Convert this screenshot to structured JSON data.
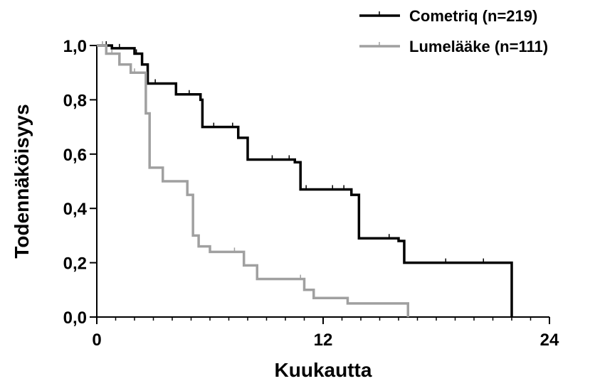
{
  "chart_data": {
    "type": "line",
    "xlabel": "Kuukautta",
    "ylabel": "Todennäköisyys",
    "xlim": [
      0,
      24
    ],
    "ylim": [
      0,
      1.0
    ],
    "x_ticks": [
      "0",
      "12",
      "24"
    ],
    "y_ticks": [
      "0,0",
      "0,2",
      "0,4",
      "0,6",
      "0,8",
      "1,0"
    ],
    "y_tick_values": [
      0,
      0.2,
      0.4,
      0.6,
      0.8,
      1.0
    ],
    "x_tick_values": [
      0,
      12,
      24
    ],
    "grid": false,
    "legend_position": "top-right",
    "step": true,
    "series": [
      {
        "name": "Cometriq (n=219)",
        "color": "#000000",
        "points": [
          [
            0,
            1.0
          ],
          [
            0.8,
            0.99
          ],
          [
            2.0,
            0.97
          ],
          [
            2.4,
            0.93
          ],
          [
            2.7,
            0.86
          ],
          [
            4.2,
            0.82
          ],
          [
            5.5,
            0.8
          ],
          [
            5.6,
            0.7
          ],
          [
            7.5,
            0.66
          ],
          [
            8.0,
            0.58
          ],
          [
            10.5,
            0.57
          ],
          [
            10.8,
            0.47
          ],
          [
            13.5,
            0.45
          ],
          [
            13.9,
            0.29
          ],
          [
            16.0,
            0.28
          ],
          [
            16.3,
            0.2
          ],
          [
            22.0,
            0.2
          ],
          [
            22.0,
            0.0
          ]
        ],
        "censor_x": [
          0.5,
          1.2,
          2.1,
          3.1,
          4.2,
          4.9,
          6.2,
          7.2,
          9.3,
          10.2,
          11.1,
          12.5,
          13.1,
          15.5,
          18.5,
          20.5
        ]
      },
      {
        "name": "Lumelääke (n=111)",
        "color": "#a0a0a0",
        "points": [
          [
            0,
            1.0
          ],
          [
            0.5,
            0.97
          ],
          [
            1.2,
            0.93
          ],
          [
            1.8,
            0.9
          ],
          [
            2.6,
            0.75
          ],
          [
            2.8,
            0.55
          ],
          [
            3.5,
            0.5
          ],
          [
            4.8,
            0.45
          ],
          [
            5.1,
            0.3
          ],
          [
            5.4,
            0.26
          ],
          [
            6.0,
            0.24
          ],
          [
            7.8,
            0.19
          ],
          [
            8.5,
            0.14
          ],
          [
            11.0,
            0.1
          ],
          [
            11.5,
            0.07
          ],
          [
            13.3,
            0.05
          ],
          [
            16.5,
            0.05
          ],
          [
            16.5,
            0.0
          ]
        ],
        "censor_x": [
          0.3,
          0.8,
          2.0,
          3.5,
          7.3,
          10.8,
          11.5
        ]
      }
    ]
  }
}
